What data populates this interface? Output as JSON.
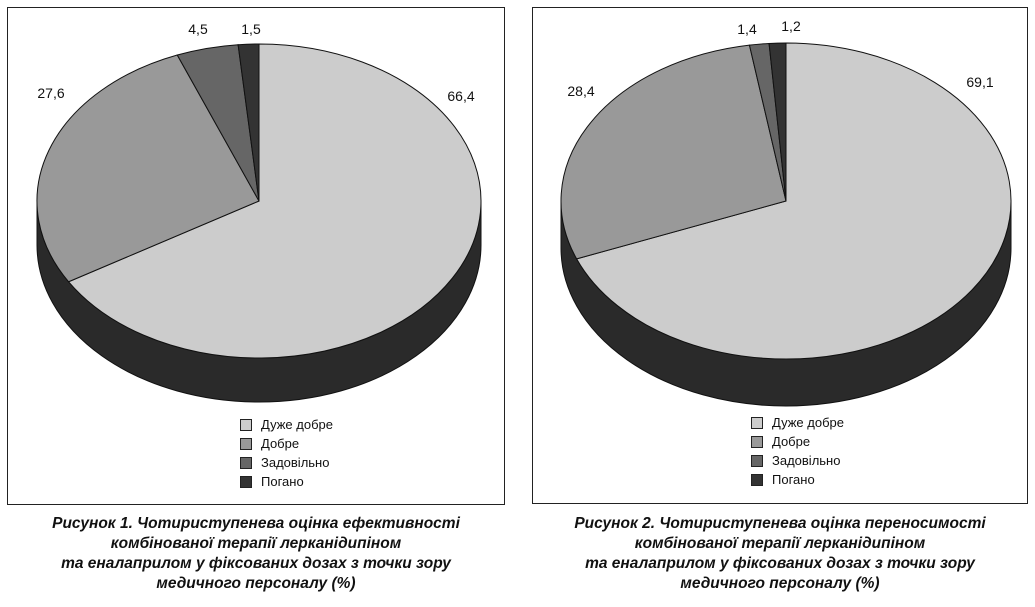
{
  "colors": {
    "very_good": "#cccccc",
    "good": "#999999",
    "satisfactory": "#666666",
    "bad": "#333333",
    "side": "#2a2a2a"
  },
  "legend": [
    "Дуже добре",
    "Добре",
    "Задовільно",
    "Погано"
  ],
  "charts": [
    {
      "caption": [
        "Рисунок 1. Чотириступенева оцінка ефективності",
        "комбінованої терапії лерканідипіном",
        "та еналаприлом у фіксованих дозах з точки зору",
        "медичного персоналу (%)"
      ]
    },
    {
      "caption": [
        "Рисунок 2. Чотириступенева оцінка переносимості",
        "комбінованої терапії лерканідипіном",
        "та еналаприлом у фіксованих дозах з точки зору",
        "медичного персоналу (%)"
      ]
    }
  ],
  "chart_data": [
    {
      "type": "pie",
      "categories": [
        "Дуже добре",
        "Добре",
        "Задовільно",
        "Погано"
      ],
      "values": [
        66.4,
        27.6,
        4.5,
        1.5
      ],
      "labels": [
        "66,4",
        "27,6",
        "4,5",
        "1,5"
      ],
      "legend_position": "bottom"
    },
    {
      "type": "pie",
      "categories": [
        "Дуже добре",
        "Добре",
        "Задовільно",
        "Погано"
      ],
      "values": [
        69.1,
        28.4,
        1.4,
        1.2
      ],
      "labels": [
        "69,1",
        "28,4",
        "1,4",
        "1,2"
      ],
      "legend_position": "bottom"
    }
  ]
}
